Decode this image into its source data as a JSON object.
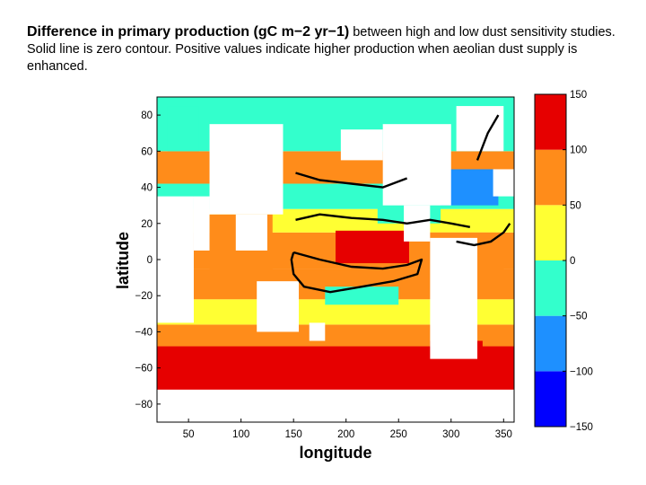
{
  "caption": {
    "title": "Difference in primary production (gC m−2 yr−1)",
    "text": " between high and low dust sensitivity studies. Solid line is zero contour. Positive values indicate higher production when aeolian dust supply is enhanced."
  },
  "chart_data": {
    "type": "heatmap",
    "xlabel": "longitude",
    "ylabel": "latitude",
    "xlim": [
      20,
      360
    ],
    "ylim": [
      -90,
      90
    ],
    "xticks": [
      50,
      100,
      150,
      200,
      250,
      300,
      350
    ],
    "yticks": [
      80,
      60,
      40,
      20,
      0,
      -20,
      -40,
      -60,
      -80
    ],
    "colorbar": {
      "min": -150,
      "max": 150,
      "step": 50,
      "ticks": [
        150,
        100,
        50,
        0,
        -50,
        -100,
        -150
      ],
      "colors": [
        "#0000ff",
        "#1e90ff",
        "#33ffcc",
        "#ffff33",
        "#ff8c1a",
        "#e60000"
      ]
    },
    "contour_level": 0,
    "grid": false,
    "bands": [
      {
        "lat": [
          -90,
          -72
        ],
        "value": null
      },
      {
        "lat": [
          -72,
          -48
        ],
        "value": 120
      },
      {
        "lat": [
          -48,
          -36
        ],
        "value": 75
      },
      {
        "lat": [
          -36,
          -22
        ],
        "value": 25
      },
      {
        "lat": [
          -22,
          -5
        ],
        "value": 75
      },
      {
        "lat": [
          -5,
          15
        ],
        "value": 75
      },
      {
        "lat": [
          15,
          28
        ],
        "value": 25
      },
      {
        "lat": [
          28,
          42
        ],
        "value": -25
      },
      {
        "lat": [
          42,
          60
        ],
        "value": 75
      },
      {
        "lat": [
          60,
          90
        ],
        "value": -25
      }
    ],
    "regions": [
      {
        "lon": [
          190,
          260
        ],
        "lat": [
          -2,
          16
        ],
        "value": 120
      },
      {
        "lon": [
          230,
          290
        ],
        "lat": [
          20,
          40
        ],
        "value": -25
      },
      {
        "lon": [
          290,
          345
        ],
        "lat": [
          30,
          50
        ],
        "value": -75
      },
      {
        "lon": [
          270,
          350
        ],
        "lat": [
          -20,
          15
        ],
        "value": 75
      },
      {
        "lon": [
          180,
          250
        ],
        "lat": [
          -25,
          -15
        ],
        "value": -25
      },
      {
        "lon": [
          280,
          330
        ],
        "lat": [
          -60,
          -45
        ],
        "value": 120
      },
      {
        "lon": [
          30,
          60
        ],
        "lat": [
          60,
          85
        ],
        "value": -25
      },
      {
        "lon": [
          70,
          130
        ],
        "lat": [
          -10,
          25
        ],
        "value": 75
      },
      {
        "lon": [
          20,
          40
        ],
        "lat": [
          -10,
          10
        ],
        "value": 75
      }
    ],
    "land": [
      {
        "lon": [
          20,
          55
        ],
        "lat": [
          -35,
          35
        ]
      },
      {
        "lon": [
          55,
          70
        ],
        "lat": [
          5,
          35
        ]
      },
      {
        "lon": [
          70,
          140
        ],
        "lat": [
          25,
          75
        ]
      },
      {
        "lon": [
          95,
          125
        ],
        "lat": [
          5,
          25
        ]
      },
      {
        "lon": [
          115,
          155
        ],
        "lat": [
          -40,
          -12
        ]
      },
      {
        "lon": [
          165,
          180
        ],
        "lat": [
          -45,
          -35
        ]
      },
      {
        "lon": [
          195,
          235
        ],
        "lat": [
          55,
          72
        ]
      },
      {
        "lon": [
          235,
          300
        ],
        "lat": [
          30,
          75
        ]
      },
      {
        "lon": [
          255,
          280
        ],
        "lat": [
          10,
          30
        ]
      },
      {
        "lon": [
          280,
          325
        ],
        "lat": [
          -55,
          12
        ]
      },
      {
        "lon": [
          305,
          350
        ],
        "lat": [
          60,
          85
        ]
      },
      {
        "lon": [
          340,
          360
        ],
        "lat": [
          35,
          50
        ]
      }
    ],
    "contours": [
      [
        [
          150,
          4
        ],
        [
          175,
          0
        ],
        [
          205,
          -4
        ],
        [
          235,
          -5
        ],
        [
          258,
          -3
        ],
        [
          272,
          0
        ],
        [
          268,
          -8
        ],
        [
          245,
          -12
        ],
        [
          215,
          -15
        ],
        [
          185,
          -18
        ],
        [
          160,
          -15
        ],
        [
          150,
          -8
        ],
        [
          148,
          0
        ],
        [
          150,
          4
        ]
      ],
      [
        [
          152,
          22
        ],
        [
          175,
          25
        ],
        [
          205,
          23
        ],
        [
          235,
          22
        ],
        [
          258,
          20
        ],
        [
          280,
          22
        ],
        [
          300,
          20
        ],
        [
          318,
          18
        ]
      ],
      [
        [
          152,
          48
        ],
        [
          175,
          44
        ],
        [
          205,
          42
        ],
        [
          235,
          40
        ],
        [
          258,
          45
        ]
      ],
      [
        [
          305,
          10
        ],
        [
          322,
          8
        ],
        [
          338,
          10
        ],
        [
          350,
          15
        ],
        [
          356,
          20
        ]
      ],
      [
        [
          325,
          55
        ],
        [
          335,
          70
        ],
        [
          345,
          80
        ]
      ]
    ]
  }
}
